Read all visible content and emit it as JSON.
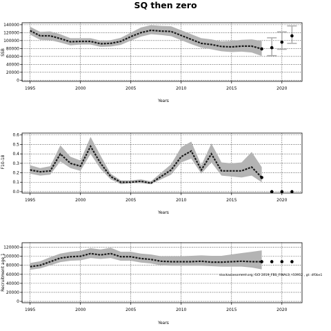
{
  "page": {
    "title": "SQ then zero"
  },
  "chart_data": [
    {
      "type": "line",
      "panel": "ssb",
      "xlabel": "Years",
      "ylabel": "SSB",
      "xlim": [
        1994.2,
        2022.0
      ],
      "ylim": [
        -3000,
        145000
      ],
      "xticks": [
        1995,
        2000,
        2005,
        2010,
        2015,
        2020
      ],
      "yticks": [
        0,
        20000,
        40000,
        60000,
        80000,
        100000,
        120000,
        140000
      ],
      "ytick_labels": [
        "0",
        "20000",
        "40000",
        "60000",
        "80000",
        "100000",
        "120000",
        "140000"
      ],
      "grid": true,
      "x": [
        1995,
        1996,
        1997,
        1998,
        1999,
        2000,
        2001,
        2002,
        2003,
        2004,
        2005,
        2006,
        2007,
        2008,
        2009,
        2010,
        2011,
        2012,
        2013,
        2014,
        2015,
        2016,
        2017,
        2018
      ],
      "values": [
        125000,
        112000,
        112000,
        105000,
        97000,
        98000,
        98000,
        92000,
        93000,
        98000,
        110000,
        120000,
        126000,
        124000,
        123000,
        113000,
        103000,
        93000,
        90000,
        85000,
        84000,
        86000,
        86000,
        79000
      ],
      "lower": [
        115000,
        102000,
        101000,
        95000,
        88000,
        90000,
        90000,
        84000,
        85000,
        89000,
        100000,
        110000,
        116000,
        114000,
        111000,
        101000,
        91000,
        82000,
        78000,
        73000,
        71000,
        72000,
        70000,
        61000
      ],
      "upper": [
        135000,
        122000,
        123000,
        116000,
        106000,
        106000,
        106000,
        100000,
        101000,
        107000,
        120000,
        133000,
        139000,
        137000,
        136000,
        126000,
        116000,
        106000,
        103000,
        98000,
        99000,
        102000,
        103000,
        99000
      ],
      "projection": {
        "x": [
          2018,
          2019,
          2020,
          2021
        ],
        "values": [
          79000,
          82000,
          96000,
          112000
        ],
        "lower": [
          62000,
          62000,
          78000,
          93000
        ],
        "upper": [
          96000,
          107000,
          122000,
          137000
        ]
      }
    },
    {
      "type": "line",
      "panel": "f",
      "xlabel": "Years",
      "ylabel": "F10-18",
      "xlim": [
        1994.2,
        2022.0
      ],
      "ylim": [
        -0.015,
        0.62
      ],
      "xticks": [
        1995,
        2000,
        2005,
        2010,
        2015,
        2020
      ],
      "yticks": [
        0.0,
        0.1,
        0.2,
        0.3,
        0.4,
        0.5,
        0.6
      ],
      "ytick_labels": [
        "0.0",
        "0.1",
        "0.2",
        "0.3",
        "0.4",
        "0.5",
        "0.6"
      ],
      "grid": true,
      "x": [
        1995,
        1996,
        1997,
        1998,
        1999,
        2000,
        2001,
        2002,
        2003,
        2004,
        2005,
        2006,
        2007,
        2008,
        2009,
        2010,
        2011,
        2012,
        2013,
        2014,
        2015,
        2016,
        2017,
        2018
      ],
      "values": [
        0.23,
        0.21,
        0.22,
        0.4,
        0.3,
        0.27,
        0.48,
        0.3,
        0.16,
        0.1,
        0.1,
        0.11,
        0.09,
        0.16,
        0.23,
        0.37,
        0.43,
        0.23,
        0.4,
        0.22,
        0.22,
        0.22,
        0.26,
        0.15
      ],
      "lower": [
        0.19,
        0.17,
        0.18,
        0.32,
        0.25,
        0.22,
        0.4,
        0.24,
        0.13,
        0.08,
        0.09,
        0.09,
        0.08,
        0.13,
        0.18,
        0.31,
        0.35,
        0.19,
        0.31,
        0.17,
        0.16,
        0.15,
        0.17,
        0.1
      ],
      "upper": [
        0.28,
        0.25,
        0.27,
        0.49,
        0.37,
        0.33,
        0.58,
        0.38,
        0.19,
        0.12,
        0.12,
        0.13,
        0.11,
        0.2,
        0.29,
        0.47,
        0.53,
        0.28,
        0.51,
        0.31,
        0.3,
        0.31,
        0.42,
        0.26
      ],
      "projection": {
        "x": [
          2018,
          2019,
          2020,
          2021
        ],
        "values": [
          0.15,
          0.0,
          0.0,
          0.0
        ]
      }
    },
    {
      "type": "line",
      "panel": "recruitment",
      "xlabel": "Years",
      "ylabel": "Recruitment age 1",
      "xlim": [
        1994.2,
        2022.0
      ],
      "ylim": [
        -3000,
        130000
      ],
      "xticks": [
        1995,
        2000,
        2005,
        2010,
        2015,
        2020
      ],
      "yticks": [
        0,
        20000,
        40000,
        60000,
        80000,
        100000,
        120000
      ],
      "ytick_labels": [
        "0",
        "20000",
        "40000",
        "60000",
        "80000",
        "100000",
        "120000"
      ],
      "grid": true,
      "annotation": "stockassessment.org, GCI 2019_FBS_FINAL3, r13912 , gt:  df0be1",
      "x": [
        1995,
        1996,
        1997,
        1998,
        1999,
        2000,
        2001,
        2002,
        2003,
        2004,
        2005,
        2006,
        2007,
        2008,
        2009,
        2010,
        2011,
        2012,
        2013,
        2014,
        2015,
        2016,
        2017,
        2018
      ],
      "values": [
        77000,
        80000,
        88000,
        96000,
        99000,
        100000,
        106000,
        103000,
        106000,
        99000,
        99000,
        95000,
        93000,
        89000,
        88000,
        88000,
        88000,
        89000,
        87000,
        87000,
        88000,
        89000,
        88000,
        88000
      ],
      "lower": [
        70000,
        73000,
        80000,
        87000,
        90000,
        91000,
        96000,
        94000,
        96000,
        90000,
        90000,
        86000,
        84000,
        80000,
        79000,
        79000,
        79000,
        79000,
        78000,
        77000,
        77000,
        77000,
        75000,
        71000
      ],
      "upper": [
        85000,
        89000,
        98000,
        106000,
        110000,
        112000,
        118000,
        115000,
        119000,
        110000,
        110000,
        106000,
        104000,
        100000,
        100000,
        100000,
        101000,
        102000,
        101000,
        101000,
        104000,
        107000,
        110000,
        113000
      ],
      "projection": {
        "x": [
          2018,
          2019,
          2020,
          2021
        ],
        "values": [
          88000,
          88000,
          88000,
          88000
        ]
      }
    }
  ]
}
